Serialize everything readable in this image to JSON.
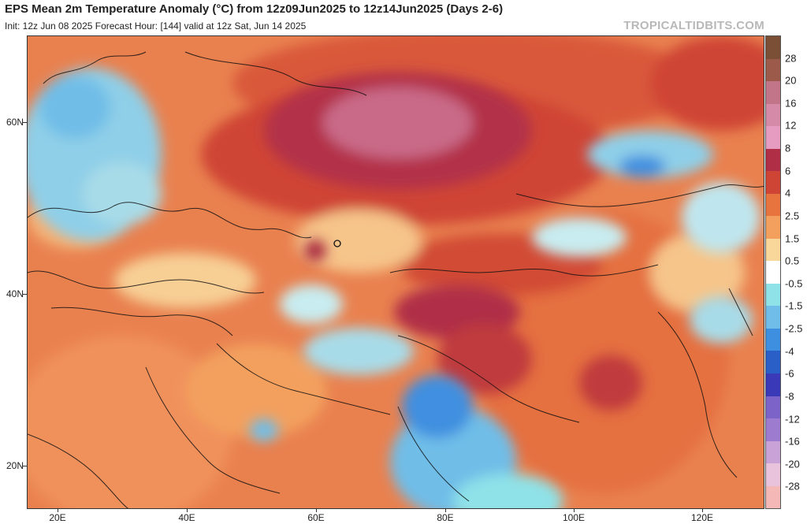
{
  "header": {
    "title": "EPS Mean 2m Temperature Anomaly (°C) from 12z09Jun2025 to 12z14Jun2025 (Days 2-6)",
    "subtitle": "Init: 12z Jun 08 2025   Forecast Hour: [144]   valid at 12z Sat, Jun 14 2025",
    "watermark": "TROPICALTIDBITS.COM"
  },
  "map": {
    "region": "Europe, Middle East, Central and East Asia",
    "lat_labels": [
      "60N",
      "40N",
      "20N"
    ],
    "lon_labels": [
      "20E",
      "40E",
      "60E",
      "80E",
      "100E",
      "120E"
    ],
    "features": [
      {
        "name": "west-siberia-warm-anomaly",
        "category": "warm",
        "level": "+12"
      },
      {
        "name": "tibetan-plateau-warm-anomaly",
        "category": "warm",
        "level": "+6"
      },
      {
        "name": "aral-sea-warm-spot",
        "category": "warm",
        "level": "+6"
      },
      {
        "name": "scandinavia-cool-anomaly",
        "category": "cool",
        "level": "-2.5"
      },
      {
        "name": "india-cool-anomaly",
        "category": "cool",
        "level": "-2.5"
      },
      {
        "name": "eastern-siberia-cool-anomaly",
        "category": "cool",
        "level": "-2.5"
      },
      {
        "name": "iran-cool-anomaly",
        "category": "cool",
        "level": "-1.5"
      },
      {
        "name": "mongolia-cool-anomaly",
        "category": "cool",
        "level": "-0.5"
      }
    ]
  },
  "colorbar": {
    "labels": [
      "28",
      "20",
      "16",
      "12",
      "8",
      "6",
      "4",
      "2.5",
      "1.5",
      "0.5",
      "-0.5",
      "-1.5",
      "-2.5",
      "-4",
      "-6",
      "-8",
      "-12",
      "-16",
      "-20",
      "-28"
    ],
    "colors": [
      "#7a4f36",
      "#9c5a4b",
      "#c27488",
      "#d58aa8",
      "#e69cc0",
      "#b02e46",
      "#cf4535",
      "#e7733f",
      "#f3a05f",
      "#f9d79b",
      "#ffffff",
      "#8fe2e8",
      "#6fbde8",
      "#3f8fe0",
      "#2a5fc8",
      "#3a3ab8",
      "#7b63c8",
      "#9d7ccf",
      "#c9a3d8",
      "#e9c3dc",
      "#f4b9b6"
    ]
  }
}
